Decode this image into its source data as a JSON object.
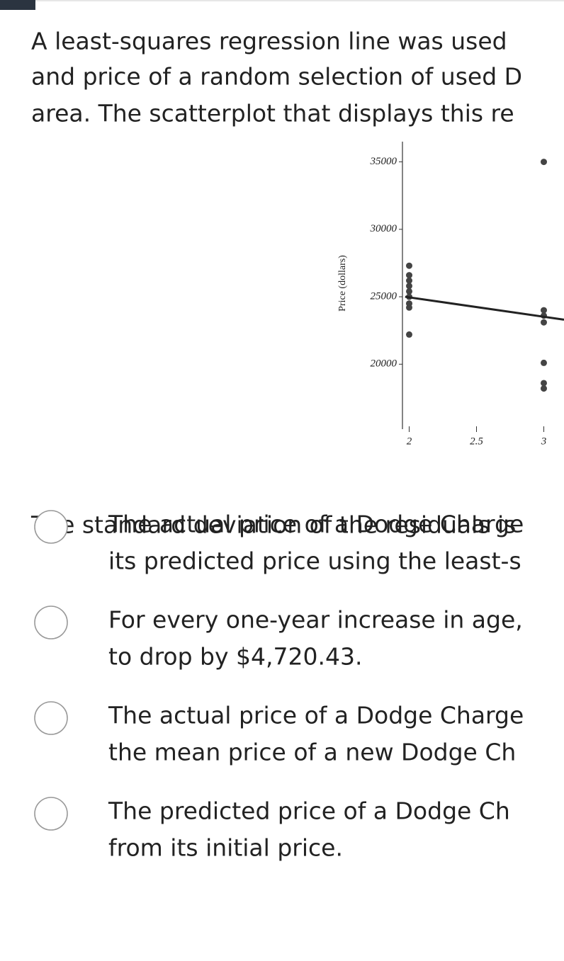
{
  "question": {
    "lines": [
      "A least-squares regression line was used",
      "and price of a random selection of used D",
      "area. The scatterplot that displays this re"
    ]
  },
  "chart_data": {
    "type": "scatter",
    "y_label": "Price (dollars)",
    "x": [
      2,
      2,
      2,
      2,
      2,
      2,
      2,
      2,
      2,
      3,
      3,
      3,
      3,
      3,
      3,
      3
    ],
    "y": [
      27300,
      26600,
      26200,
      25800,
      25400,
      25000,
      24500,
      24200,
      22200,
      35000,
      24000,
      23600,
      23100,
      20100,
      18600,
      18200
    ],
    "color": "#444444",
    "regression_line": {
      "x": [
        1.97,
        3.15
      ],
      "y": [
        25000,
        23300
      ],
      "color": "#222222"
    },
    "xlim": [
      1.95,
      3.15
    ],
    "xticks": [
      2,
      2.5,
      3
    ],
    "ylim": [
      15500,
      36500
    ],
    "yticks": [
      20000,
      25000,
      30000,
      35000
    ]
  },
  "prompt": "The standard deviation of the residuals is",
  "options": [
    {
      "lines": [
        "The actual price of a Dodge Charge",
        "its predicted price using the least-s"
      ]
    },
    {
      "lines": [
        "For every one-year increase in age,",
        "to drop by $4,720.43."
      ]
    },
    {
      "lines": [
        "The actual price of a Dodge Charge",
        "the mean price of a new Dodge Ch"
      ]
    },
    {
      "lines": [
        "The predicted price of a Dodge Ch",
        "from its initial price."
      ]
    }
  ]
}
